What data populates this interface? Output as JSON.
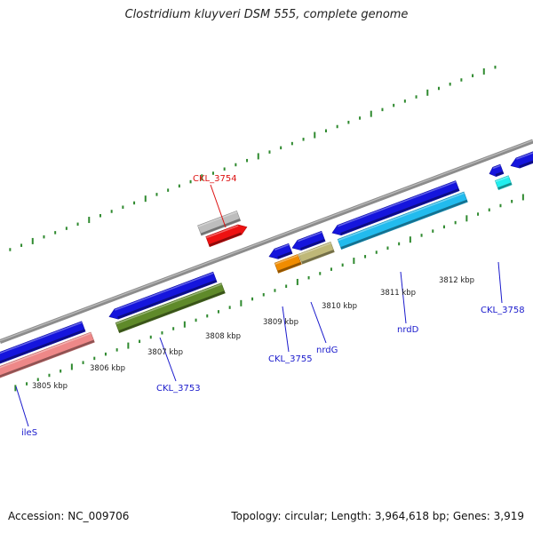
{
  "title": "Clostridium kluyveri DSM 555, complete genome",
  "footer": {
    "accession": "Accession: NC_009706",
    "summary": "Topology: circular; Length: 3,964,618 bp; Genes: 3,919"
  },
  "colors": {
    "backbone": "#8c8c8c",
    "tick": "#2f8a2f",
    "gene_label": "#1a1acc",
    "highlight_label": "#dd1111"
  },
  "scale_labels": [
    "3805 kbp",
    "3806 kbp",
    "3807 kbp",
    "3808 kbp",
    "3809 kbp",
    "3810 kbp",
    "3811 kbp",
    "3812 kbp"
  ],
  "gene_labels": [
    {
      "text": "ileS",
      "highlight": false
    },
    {
      "text": "CKL_3753",
      "highlight": false
    },
    {
      "text": "CKL_3754",
      "highlight": true
    },
    {
      "text": "CKL_3755",
      "highlight": false
    },
    {
      "text": "nrdG",
      "highlight": false
    },
    {
      "text": "nrdD",
      "highlight": false
    },
    {
      "text": "CKL_3758",
      "highlight": false
    }
  ],
  "features": [
    {
      "name": "cds-ileS",
      "color": "#1515dd"
    },
    {
      "name": "gene-ileS",
      "color": "#ee8888"
    },
    {
      "name": "cds-ckl3753",
      "color": "#1515dd"
    },
    {
      "name": "gene-ckl3753",
      "color": "#5f8a2a"
    },
    {
      "name": "gene-ckl3754",
      "color": "#bdbdbd"
    },
    {
      "name": "cds-ckl3754",
      "color": "#ee1111"
    },
    {
      "name": "cds-ckl3755",
      "color": "#1515dd"
    },
    {
      "name": "gene-ckl3755",
      "color": "#f08c00"
    },
    {
      "name": "cds-nrdG",
      "color": "#1515dd"
    },
    {
      "name": "gene-nrdG",
      "color": "#bfb878"
    },
    {
      "name": "cds-nrdD",
      "color": "#1515dd"
    },
    {
      "name": "gene-nrdD",
      "color": "#22bbee"
    },
    {
      "name": "cds-ckl3758",
      "color": "#1515dd"
    },
    {
      "name": "gene-ckl3758",
      "color": "#22eeee"
    },
    {
      "name": "cds-next",
      "color": "#1515dd"
    }
  ]
}
